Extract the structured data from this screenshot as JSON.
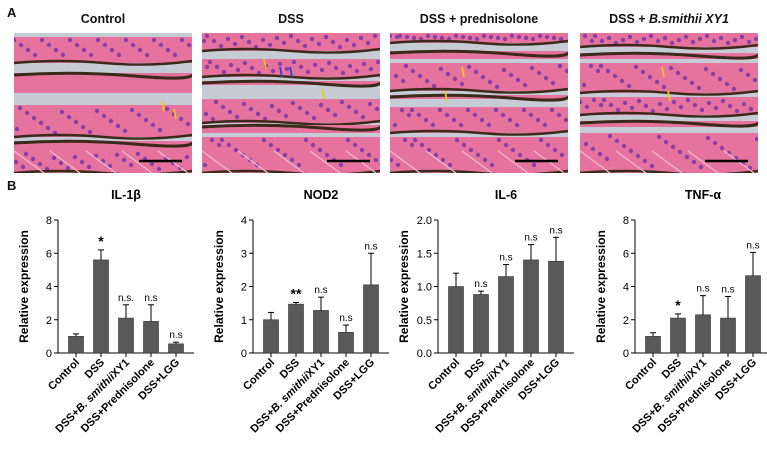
{
  "panel_labels": {
    "a": "A",
    "b": "B"
  },
  "images": [
    {
      "title": "Control",
      "italic": ""
    },
    {
      "title": "DSS",
      "italic": ""
    },
    {
      "title": "DSS + prednisolone",
      "italic": ""
    },
    {
      "title": "DSS + ",
      "italic": "B.smithii XY1"
    }
  ],
  "colors": {
    "bar": "#595959",
    "tissue_pink": "#e5739e",
    "nuclei": "#8a3fa6",
    "pigment": "#3b2a1a",
    "lumen": "#c6ccd6"
  },
  "chart_data": [
    {
      "type": "bar",
      "title": "IL-1β",
      "ylabel": "Relative expression",
      "categories": [
        "Control",
        "DSS",
        "DSS+B. smithiiXY1",
        "DSS+Prednisolone",
        "DSS+LGG"
      ],
      "values": [
        1.0,
        5.6,
        2.1,
        1.9,
        0.55
      ],
      "errors": [
        0.15,
        0.6,
        0.8,
        1.0,
        0.1
      ],
      "annotations": [
        "",
        "*",
        "n.s.",
        "n.s",
        "n.s"
      ],
      "ylim": [
        0,
        8
      ],
      "yticks": [
        0,
        2,
        4,
        6,
        8
      ]
    },
    {
      "type": "bar",
      "title": "NOD2",
      "ylabel": "Relative expression",
      "categories": [
        "Control",
        "DSS",
        "DSS+B. smithiiXY1",
        "DSS+Prednisolone",
        "DSS+LGG"
      ],
      "values": [
        1.0,
        1.47,
        1.28,
        0.62,
        2.05
      ],
      "errors": [
        0.22,
        0.05,
        0.4,
        0.22,
        0.95
      ],
      "annotations": [
        "",
        "**",
        "n.s",
        "n.s",
        "n.s"
      ],
      "ylim": [
        0,
        4
      ],
      "yticks": [
        0,
        1,
        2,
        3,
        4
      ]
    },
    {
      "type": "bar",
      "title": "IL-6",
      "ylabel": "Relative expression",
      "categories": [
        "Control",
        "DSS",
        "DSS+B. smithiiXY1",
        "DSS+Prednisolone",
        "DSS+LGG"
      ],
      "values": [
        1.0,
        0.88,
        1.15,
        1.4,
        1.38
      ],
      "errors": [
        0.2,
        0.05,
        0.18,
        0.23,
        0.36
      ],
      "annotations": [
        "",
        "n.s",
        "n.s",
        "n.s",
        "n.s"
      ],
      "ylim": [
        0,
        2.0
      ],
      "yticks": [
        0.0,
        0.5,
        1.0,
        1.5,
        2.0
      ]
    },
    {
      "type": "bar",
      "title": "TNF-α",
      "ylabel": "Relative expression",
      "categories": [
        "Control",
        "DSS",
        "DSS+B. smithiiXY1",
        "DSS+Prednisolone",
        "DSS+LGG"
      ],
      "values": [
        1.0,
        2.1,
        2.3,
        2.1,
        4.65
      ],
      "errors": [
        0.22,
        0.25,
        1.15,
        1.3,
        1.4
      ],
      "annotations": [
        "",
        "*",
        "n.s",
        "n.s",
        "n.s"
      ],
      "ylim": [
        0,
        8
      ],
      "yticks": [
        0,
        2,
        4,
        6,
        8
      ]
    }
  ]
}
